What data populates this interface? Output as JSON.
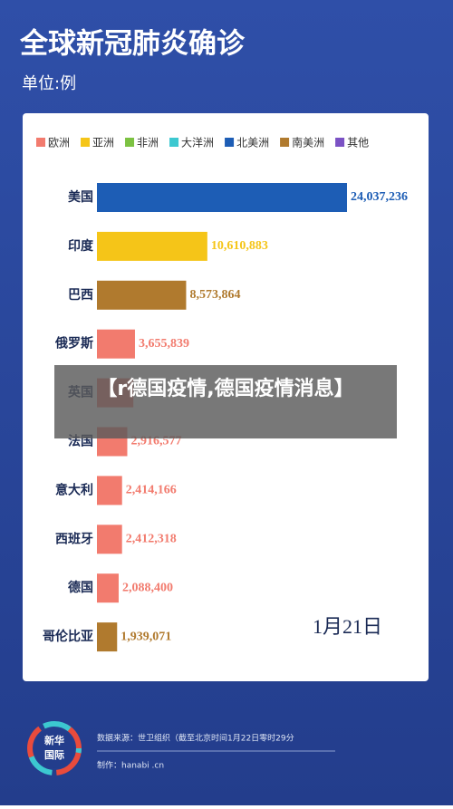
{
  "chart_data": {
    "type": "bar",
    "orientation": "horizontal",
    "title": "全球新冠肺炎确诊",
    "subtitle": "单位:例",
    "legend": [
      {
        "name": "欧洲",
        "color": "#f27b6e"
      },
      {
        "name": "亚洲",
        "color": "#f5c518"
      },
      {
        "name": "非洲",
        "color": "#7cc242"
      },
      {
        "name": "大洋洲",
        "color": "#3cc8d0"
      },
      {
        "name": "北美洲",
        "color": "#1d5db5"
      },
      {
        "name": "南美洲",
        "color": "#b07a2e"
      },
      {
        "name": "其他",
        "color": "#7b52c4"
      }
    ],
    "categories": [
      "美国",
      "印度",
      "巴西",
      "俄罗斯",
      "英国",
      "法国",
      "意大利",
      "西班牙",
      "德国",
      "哥伦比亚"
    ],
    "values": [
      24037236,
      10610883,
      8573864,
      3655839,
      3500000,
      2916577,
      2414166,
      2412318,
      2088400,
      1939071
    ],
    "value_labels": [
      "24,037,236",
      "10,610,883",
      "8,573,864",
      "3,655,839",
      null,
      "2,916,577",
      "2,414,166",
      "2,412,318",
      "2,088,400",
      "1,939,071"
    ],
    "colors": [
      "#1d5db5",
      "#f5c518",
      "#b07a2e",
      "#f27b6e",
      "#f27b6e",
      "#f27b6e",
      "#f27b6e",
      "#f27b6e",
      "#f27b6e",
      "#b07a2e"
    ],
    "annotation": "1月21日"
  },
  "overlay": {
    "text": "【r德国疫情,德国疫情消息】"
  },
  "footer": {
    "logo": [
      "新华",
      "国际"
    ],
    "source": "数据来源：世卫组织（截至北京时间1月22日零时29分",
    "credit": "制作：hanabi .cn"
  }
}
